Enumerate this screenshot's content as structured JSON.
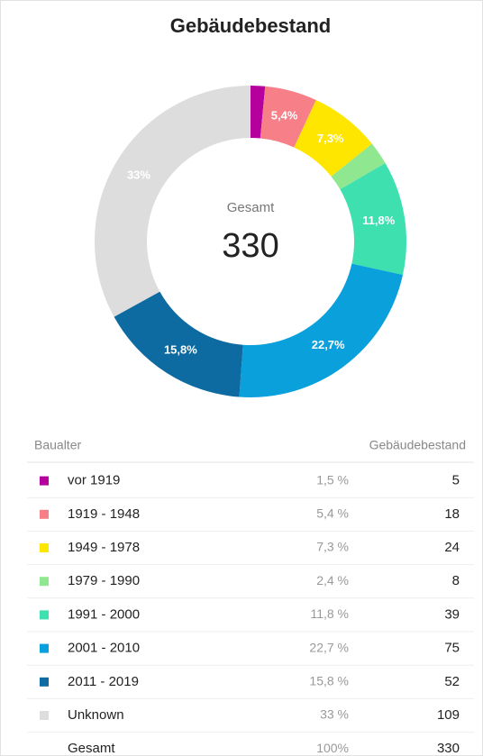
{
  "chart_data": {
    "type": "pie",
    "title": "Gebäudebestand",
    "center_label": "Gesamt",
    "center_value": 330,
    "categories": [
      "vor 1919",
      "1919 - 1948",
      "1949 - 1978",
      "1979 - 1990",
      "1991 - 2000",
      "2001 - 2010",
      "2011 - 2019",
      "Unknown"
    ],
    "values": [
      1.5,
      5.4,
      7.3,
      2.4,
      11.8,
      22.7,
      15.8,
      33
    ],
    "value_labels": [
      null,
      "5,4%",
      "7,3%",
      null,
      "11,8%",
      "22,7%",
      "15,8%",
      "33%"
    ],
    "colors": [
      "#b5009e",
      "#f77f87",
      "#ffe600",
      "#8fe88f",
      "#3ee0b0",
      "#0aa0dc",
      "#0d6ba1",
      "#dddddd"
    ]
  },
  "table": {
    "header": [
      "Baualter",
      "Gebäudebestand"
    ],
    "rows": [
      {
        "percent": "1,5 %",
        "count": 5
      },
      {
        "percent": "5,4 %",
        "count": 18
      },
      {
        "percent": "7,3 %",
        "count": 24
      },
      {
        "percent": "2,4 %",
        "count": 8
      },
      {
        "percent": "11,8 %",
        "count": 39
      },
      {
        "percent": "22,7 %",
        "count": 75
      },
      {
        "percent": "15,8 %",
        "count": 52
      },
      {
        "percent": "33 %",
        "count": 109
      }
    ],
    "total": {
      "label": "Gesamt",
      "percent": "100%",
      "count": 330
    }
  }
}
